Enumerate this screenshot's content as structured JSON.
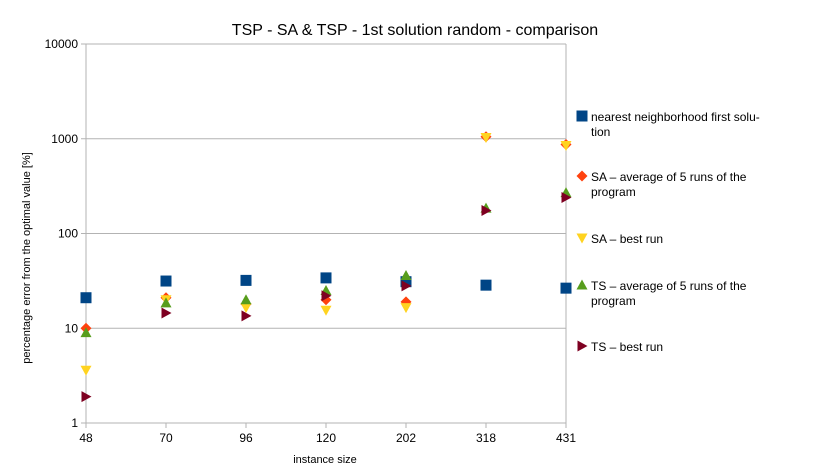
{
  "chart_data": {
    "type": "scatter",
    "title": "TSP - SA & TSP - 1st solution random - comparison",
    "xlabel": "instance size",
    "ylabel": "percentage error from the optimal value [%]",
    "categories": [
      "48",
      "70",
      "96",
      "120",
      "202",
      "318",
      "431"
    ],
    "y_scale": "log",
    "ylim": [
      1,
      10000
    ],
    "y_ticks": [
      "1",
      "10",
      "100",
      "1000",
      "10000"
    ],
    "grid": "horizontal",
    "legend_position": "right",
    "series": [
      {
        "name_lines": [
          "nearest neighborhood first solu-",
          "tion"
        ],
        "marker": "square",
        "color": "#004586",
        "values": [
          21,
          31.5,
          32,
          34,
          31,
          28.5,
          26.5
        ]
      },
      {
        "name_lines": [
          "SA – average of 5 runs of the",
          "program"
        ],
        "marker": "diamond",
        "color": "#ff420e",
        "values": [
          10,
          21,
          18,
          20,
          19,
          1050,
          870
        ]
      },
      {
        "name_lines": [
          "SA – best run"
        ],
        "marker": "triangle-down",
        "color": "#ffd320",
        "values": [
          3.6,
          20,
          16.5,
          15.5,
          16.5,
          1030,
          850
        ]
      },
      {
        "name_lines": [
          "TS – average of 5 runs of the",
          "program"
        ],
        "marker": "triangle-up",
        "color": "#579d1c",
        "values": [
          9,
          18.5,
          20,
          25,
          36,
          185,
          270
        ]
      },
      {
        "name_lines": [
          "TS – best run"
        ],
        "marker": "triangle-right",
        "color": "#7e0021",
        "values": [
          1.9,
          14.5,
          13.5,
          22,
          28,
          175,
          240
        ]
      }
    ]
  }
}
